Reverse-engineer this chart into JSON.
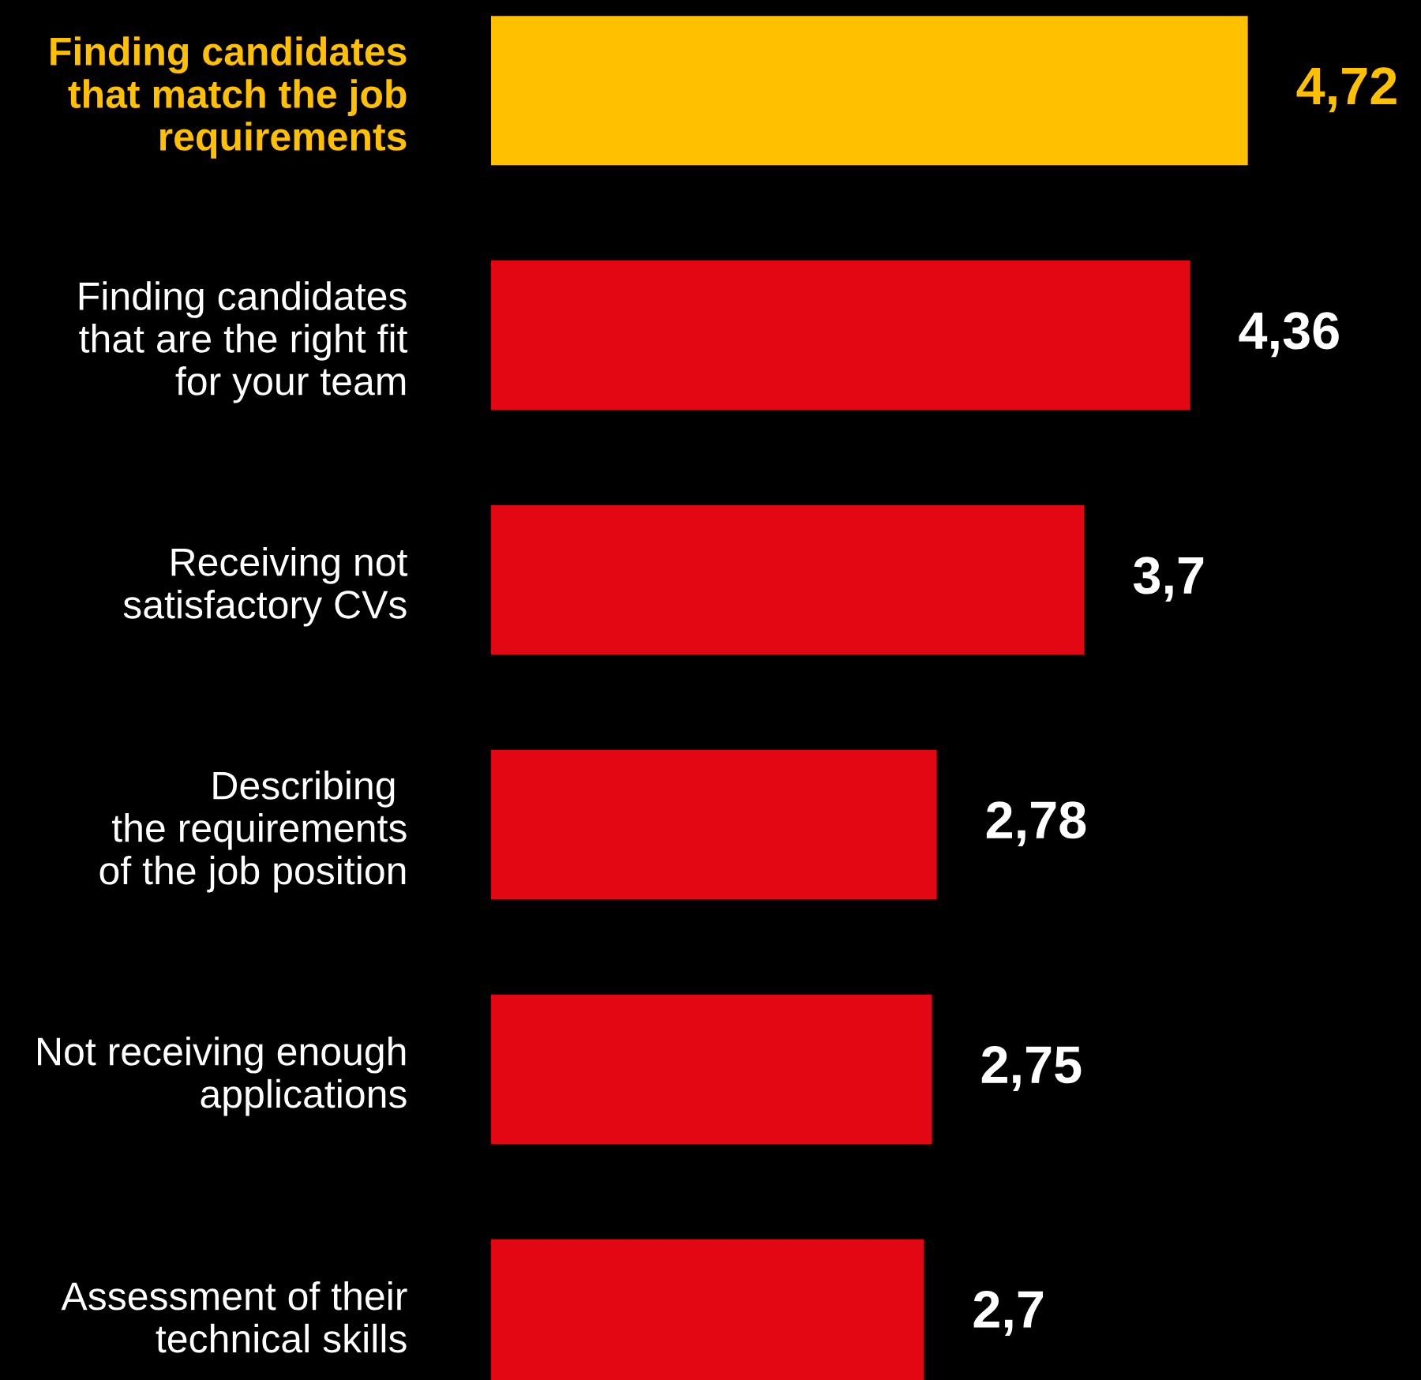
{
  "chart_data": {
    "type": "bar",
    "orientation": "horizontal",
    "categories": [
      "Finding candidates\nthat match the job\nrequirements",
      "Finding candidates\nthat are the right fit\nfor your team",
      "Receiving not\nsatisfactory CVs",
      "Describing \nthe requirements\nof the job position",
      "Not receiving enough\napplications",
      "Assessment of their\ntechnical skills"
    ],
    "values": [
      4.72,
      4.36,
      3.7,
      2.78,
      2.75,
      2.7
    ],
    "colors": [
      "#ffc000",
      "#e30613",
      "#e30613",
      "#e30613",
      "#e30613",
      "#e30613"
    ],
    "value_labels": [
      "4,72",
      "4,36",
      "3,7",
      "2,78",
      "2,75",
      "2,7"
    ],
    "xlim": [
      0,
      5.8
    ],
    "grid": false,
    "legend": false
  }
}
